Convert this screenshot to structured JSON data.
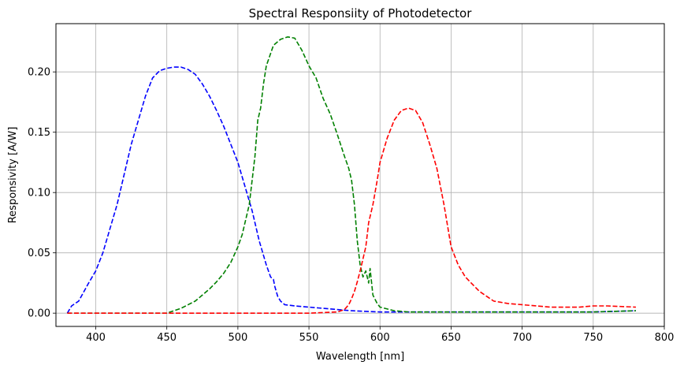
{
  "chart_data": {
    "type": "line",
    "title": "Spectral Responsiity of Photodetector",
    "xlabel": "Wavelength [nm]",
    "ylabel": "Responsivity [A/W]",
    "xlim": [
      372,
      800
    ],
    "ylim": [
      -0.011,
      0.24
    ],
    "xticks": [
      400,
      450,
      500,
      550,
      600,
      650,
      700,
      750,
      800
    ],
    "yticks": [
      0.0,
      0.05,
      0.1,
      0.15,
      0.2
    ],
    "xtick_labels": [
      "400",
      "450",
      "500",
      "550",
      "600",
      "650",
      "700",
      "750",
      "800"
    ],
    "ytick_labels": [
      "0.00",
      "0.05",
      "0.10",
      "0.15",
      "0.20"
    ],
    "grid": true,
    "line_style": "dashed",
    "series": [
      {
        "color": "#0000ff",
        "x": [
          380,
          383,
          388,
          395,
          400,
          405,
          410,
          415,
          420,
          425,
          430,
          435,
          440,
          445,
          450,
          455,
          460,
          465,
          470,
          475,
          480,
          485,
          490,
          495,
          500,
          505,
          510,
          515,
          520,
          523,
          525,
          526,
          528,
          530,
          533,
          540,
          560,
          580,
          600,
          620,
          650,
          700,
          750,
          780
        ],
        "y": [
          0.0,
          0.006,
          0.01,
          0.025,
          0.035,
          0.05,
          0.07,
          0.09,
          0.115,
          0.14,
          0.16,
          0.18,
          0.195,
          0.201,
          0.203,
          0.204,
          0.204,
          0.202,
          0.198,
          0.19,
          0.18,
          0.168,
          0.155,
          0.14,
          0.125,
          0.105,
          0.085,
          0.06,
          0.04,
          0.03,
          0.028,
          0.022,
          0.014,
          0.01,
          0.007,
          0.006,
          0.004,
          0.002,
          0.001,
          0.001,
          0.001,
          0.001,
          0.001,
          0.002
        ]
      },
      {
        "color": "#008000",
        "x": [
          380,
          400,
          420,
          440,
          450,
          455,
          460,
          465,
          470,
          475,
          480,
          485,
          490,
          495,
          500,
          503,
          505,
          508,
          510,
          512,
          514,
          516,
          518,
          520,
          525,
          530,
          535,
          540,
          545,
          550,
          555,
          560,
          565,
          570,
          575,
          578,
          580,
          582,
          584,
          586,
          588,
          590,
          592,
          593,
          595,
          598,
          600,
          610,
          620,
          650,
          700,
          750,
          780
        ],
        "y": [
          0.0,
          0.0,
          0.0,
          0.0,
          0.0,
          0.002,
          0.004,
          0.007,
          0.01,
          0.015,
          0.02,
          0.026,
          0.033,
          0.042,
          0.055,
          0.065,
          0.075,
          0.09,
          0.11,
          0.13,
          0.16,
          0.17,
          0.19,
          0.205,
          0.222,
          0.227,
          0.229,
          0.228,
          0.218,
          0.205,
          0.195,
          0.178,
          0.165,
          0.148,
          0.13,
          0.12,
          0.11,
          0.09,
          0.06,
          0.04,
          0.03,
          0.035,
          0.025,
          0.037,
          0.015,
          0.008,
          0.005,
          0.002,
          0.001,
          0.001,
          0.001,
          0.001,
          0.002
        ]
      },
      {
        "color": "#ff0000",
        "x": [
          380,
          450,
          500,
          550,
          570,
          575,
          578,
          580,
          582,
          584,
          586,
          588,
          590,
          592,
          595,
          598,
          600,
          605,
          610,
          615,
          620,
          625,
          630,
          635,
          640,
          645,
          650,
          655,
          660,
          670,
          680,
          690,
          700,
          720,
          740,
          750,
          760,
          780
        ],
        "y": [
          0.0,
          0.0,
          0.0,
          0.0,
          0.001,
          0.003,
          0.007,
          0.012,
          0.018,
          0.026,
          0.035,
          0.045,
          0.055,
          0.075,
          0.09,
          0.11,
          0.125,
          0.145,
          0.16,
          0.168,
          0.17,
          0.168,
          0.158,
          0.14,
          0.12,
          0.09,
          0.055,
          0.04,
          0.03,
          0.018,
          0.01,
          0.008,
          0.007,
          0.005,
          0.005,
          0.006,
          0.006,
          0.005
        ]
      }
    ]
  }
}
